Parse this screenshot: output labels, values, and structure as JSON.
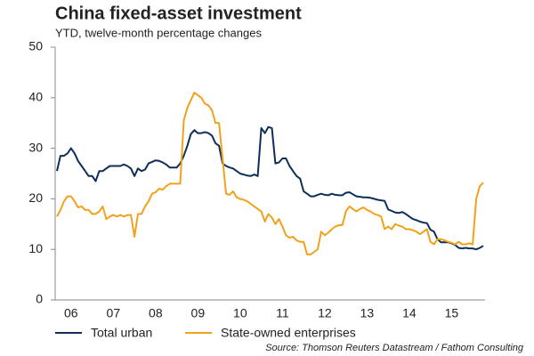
{
  "chart_data": {
    "type": "line",
    "title": "China fixed-asset investment",
    "subtitle": "YTD, twelve-month percentage changes",
    "source": "Source: Thomson Reuters Datastream / Fathom Consulting",
    "categories": [
      null,
      null,
      null,
      null,
      "06",
      null,
      null,
      null,
      null,
      null,
      null,
      null,
      null,
      null,
      null,
      null,
      "07",
      null,
      null,
      null,
      null,
      null,
      null,
      null,
      null,
      null,
      null,
      null,
      "08",
      null,
      null,
      null,
      null,
      null,
      null,
      null,
      null,
      null,
      null,
      null,
      "09",
      null,
      null,
      null,
      null,
      null,
      null,
      null,
      null,
      null,
      null,
      null,
      "10",
      null,
      null,
      null,
      null,
      null,
      null,
      null,
      null,
      null,
      null,
      null,
      "11",
      null,
      null,
      null,
      null,
      null,
      null,
      null,
      null,
      null,
      null,
      null,
      "12",
      null,
      null,
      null,
      null,
      null,
      null,
      null,
      null,
      null,
      null,
      null,
      "13",
      null,
      null,
      null,
      null,
      null,
      null,
      null,
      null,
      null,
      null,
      null,
      "14",
      null,
      null,
      null,
      null,
      null,
      null,
      null,
      null,
      null,
      null,
      null,
      "15",
      null,
      null,
      null,
      null,
      null,
      null,
      null,
      null,
      null
    ],
    "series": [
      {
        "name": "Total urban",
        "color": "#0d2f5a",
        "values": [
          25.5,
          28.5,
          28.5,
          29.0,
          30.0,
          29.0,
          27.5,
          26.5,
          25.5,
          24.5,
          24.5,
          23.5,
          25.5,
          25.5,
          26.0,
          26.5,
          26.5,
          26.5,
          26.5,
          26.8,
          26.5,
          26.0,
          24.5,
          26.0,
          25.5,
          25.8,
          27.0,
          27.3,
          27.6,
          27.5,
          27.2,
          26.8,
          26.2,
          26.2,
          26.2,
          27.0,
          28.5,
          30.5,
          32.8,
          33.6,
          33.0,
          33.0,
          33.2,
          33.0,
          32.5,
          31.0,
          30.5,
          27.0,
          26.5,
          26.2,
          26.0,
          25.5,
          25.0,
          24.8,
          24.6,
          24.5,
          24.8,
          24.5,
          34.0,
          33.0,
          34.2,
          34.0,
          27.0,
          27.2,
          28.0,
          28.0,
          26.5,
          25.5,
          24.5,
          24.0,
          21.5,
          21.0,
          20.5,
          20.5,
          20.8,
          21.0,
          20.8,
          20.7,
          21.0,
          20.8,
          20.7,
          20.7,
          21.2,
          21.3,
          20.9,
          20.5,
          20.4,
          20.3,
          20.3,
          20.2,
          20.0,
          19.8,
          19.7,
          19.6,
          17.9,
          17.6,
          17.3,
          17.2,
          17.4,
          17.0,
          16.5,
          16.0,
          15.8,
          15.5,
          15.3,
          15.2,
          13.9,
          13.5,
          12.0,
          11.4,
          11.4,
          11.4,
          11.2,
          10.9,
          10.3,
          10.2,
          10.3,
          10.2,
          10.2,
          10.0,
          10.3,
          10.7
        ]
      },
      {
        "name": "State-owned enterprises",
        "color": "#f0a21c",
        "values": [
          16.5,
          17.8,
          19.5,
          20.5,
          20.5,
          19.5,
          18.3,
          18.5,
          17.8,
          17.8,
          17.0,
          17.0,
          17.5,
          18.5,
          16.0,
          16.5,
          16.8,
          16.5,
          16.8,
          16.5,
          16.8,
          16.8,
          12.5,
          17.0,
          17.0,
          18.5,
          19.5,
          21.0,
          21.3,
          22.0,
          21.8,
          22.5,
          23.0,
          23.0,
          23.0,
          23.0,
          35.5,
          38.0,
          39.5,
          41.0,
          40.5,
          40.0,
          38.8,
          38.5,
          37.5,
          35.0,
          35.0,
          28.0,
          21.0,
          20.8,
          21.5,
          20.3,
          20.0,
          19.8,
          19.5,
          19.0,
          18.5,
          18.0,
          17.5,
          15.5,
          17.0,
          16.3,
          15.0,
          16.0,
          14.5,
          12.8,
          12.3,
          12.5,
          11.8,
          11.5,
          11.5,
          9.0,
          9.0,
          9.5,
          10.0,
          13.5,
          12.8,
          13.3,
          14.0,
          14.5,
          14.8,
          14.8,
          17.5,
          18.5,
          18.0,
          17.5,
          18.0,
          18.3,
          17.8,
          17.5,
          17.0,
          16.8,
          16.5,
          14.0,
          14.5,
          14.0,
          15.0,
          14.7,
          14.5,
          14.0,
          14.0,
          13.8,
          13.5,
          13.0,
          13.5,
          14.0,
          11.5,
          11.0,
          12.0,
          12.0,
          11.8,
          11.5,
          11.3,
          11.0,
          11.5,
          11.0,
          11.0,
          11.2,
          11.0,
          20.0,
          22.5,
          23.2
        ]
      }
    ],
    "ylim": [
      0,
      50
    ],
    "yticks": [
      0,
      10,
      20,
      30,
      40,
      50
    ],
    "grid": false,
    "legend": "bottom"
  }
}
